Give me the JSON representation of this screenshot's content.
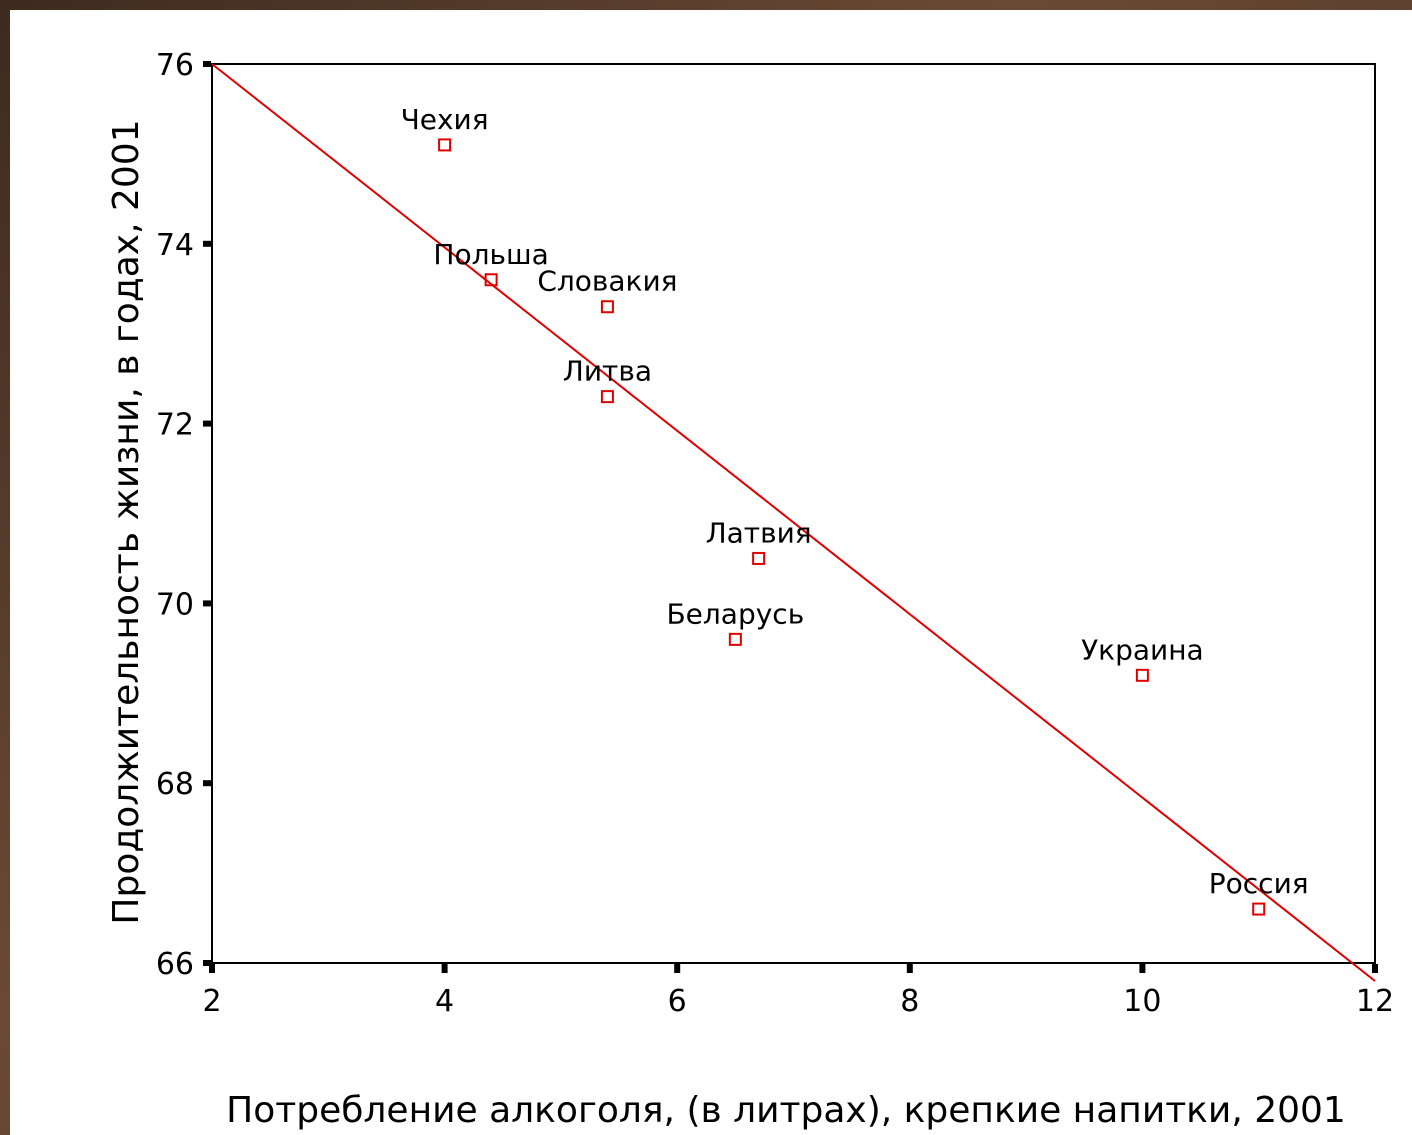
{
  "chart_data": {
    "type": "scatter",
    "title": "",
    "xlabel": "Потребление алкоголя, (в литрах), крепкие напитки, 2001",
    "ylabel": "Продолжительность жизни, в годах, 2001",
    "xlim": [
      2,
      12
    ],
    "ylim": [
      66,
      76
    ],
    "xticks": [
      "2",
      "4",
      "6",
      "8",
      "10",
      "12"
    ],
    "yticks": [
      "66",
      "68",
      "70",
      "72",
      "74",
      "76"
    ],
    "grid": false,
    "points": [
      {
        "label": "Чехия",
        "x": 4.0,
        "y": 75.1
      },
      {
        "label": "Польша",
        "x": 4.4,
        "y": 73.6
      },
      {
        "label": "Словакия",
        "x": 5.4,
        "y": 73.3
      },
      {
        "label": "Литва",
        "x": 5.4,
        "y": 72.3
      },
      {
        "label": "Латвия",
        "x": 6.7,
        "y": 70.5
      },
      {
        "label": "Беларусь",
        "x": 6.5,
        "y": 69.6
      },
      {
        "label": "Украина",
        "x": 10.0,
        "y": 69.2
      },
      {
        "label": "Россия",
        "x": 11.0,
        "y": 66.6
      }
    ],
    "fit_line": {
      "x": [
        2,
        12
      ],
      "y": [
        76.0,
        65.8
      ]
    },
    "colors": {
      "marker": "#e00000",
      "line": "#e00000",
      "axis": "#000000"
    }
  }
}
